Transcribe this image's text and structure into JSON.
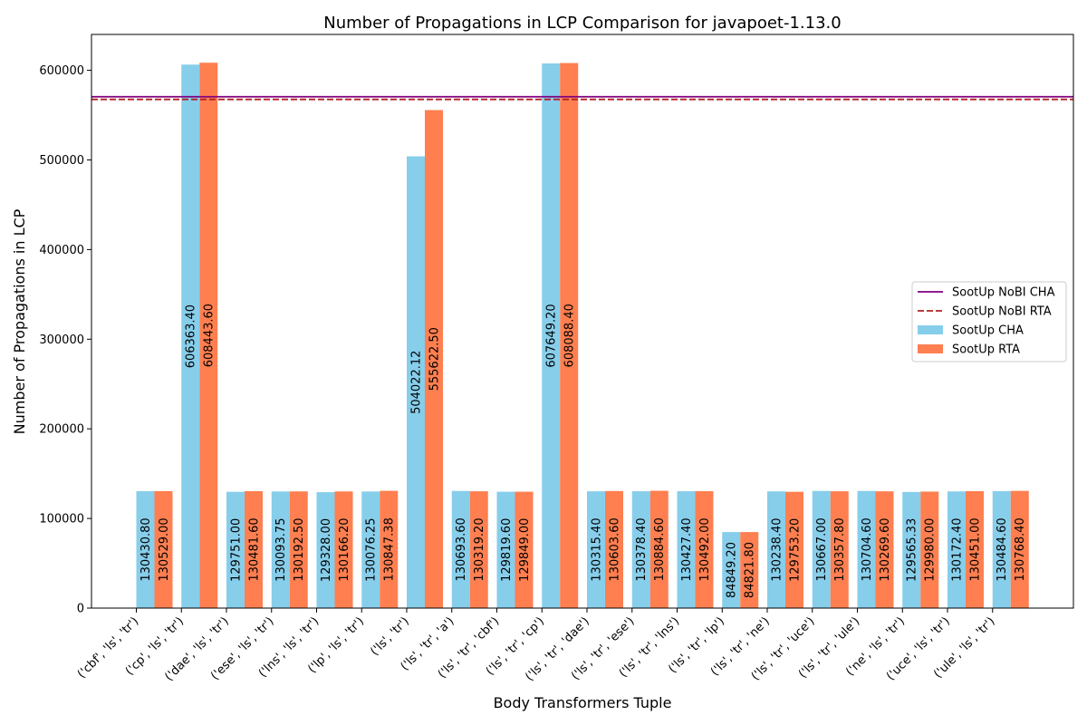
{
  "chart_data": {
    "type": "bar",
    "title": "Number of Propagations in LCP Comparison for javapoet-1.13.0",
    "xlabel": "Body Transformers Tuple",
    "ylabel": "Number of Propagations in LCP",
    "ylim": [
      0,
      640000
    ],
    "yticks": [
      0,
      100000,
      200000,
      300000,
      400000,
      500000,
      600000
    ],
    "grid": false,
    "legend_position": "center-right",
    "categories": [
      "('cbf', 'ls', 'tr')",
      "('cp', 'ls', 'tr')",
      "('dae', 'ls', 'tr')",
      "('ese', 'ls', 'tr')",
      "('lns', 'ls', 'tr')",
      "('lp', 'ls', 'tr')",
      "('ls', 'tr')",
      "('ls', 'tr', 'a')",
      "('ls', 'tr', 'cbf')",
      "('ls', 'tr', 'cp')",
      "('ls', 'tr', 'dae')",
      "('ls', 'tr', 'ese')",
      "('ls', 'tr', 'lns')",
      "('ls', 'tr', 'lp')",
      "('ls', 'tr', 'ne')",
      "('ls', 'tr', 'uce')",
      "('ls', 'tr', 'ule')",
      "('ne', 'ls', 'tr')",
      "('uce', 'ls', 'tr')",
      "('ule', 'ls', 'tr')"
    ],
    "series": [
      {
        "name": "SootUp CHA",
        "color": "#87ceeb",
        "values": [
          130430.8,
          606363.4,
          129751.0,
          130093.75,
          129328.0,
          130076.25,
          504022.12,
          130693.6,
          129819.6,
          607649.2,
          130315.4,
          130378.4,
          130427.4,
          84849.2,
          130238.4,
          130667.0,
          130704.6,
          129565.33,
          130172.4,
          130484.6
        ],
        "labels": [
          "130430.80",
          "606363.40",
          "129751.00",
          "130093.75",
          "129328.00",
          "130076.25",
          "504022.12",
          "130693.60",
          "129819.60",
          "607649.20",
          "130315.40",
          "130378.40",
          "130427.40",
          "84849.20",
          "130238.40",
          "130667.00",
          "130704.60",
          "129565.33",
          "130172.40",
          "130484.60"
        ]
      },
      {
        "name": "SootUp RTA",
        "color": "#ff7f50",
        "values": [
          130529.0,
          608443.6,
          130481.6,
          130192.5,
          130166.2,
          130847.38,
          555622.5,
          130319.2,
          129849.0,
          608088.4,
          130603.6,
          130884.6,
          130492.0,
          84821.8,
          129753.2,
          130357.8,
          130269.6,
          129980.0,
          130451.0,
          130768.4
        ],
        "labels": [
          "130529.00",
          "608443.60",
          "130481.60",
          "130192.50",
          "130166.20",
          "130847.38",
          "555622.50",
          "130319.20",
          "129849.00",
          "608088.40",
          "130603.60",
          "130884.60",
          "130492.00",
          "84821.80",
          "129753.20",
          "130357.80",
          "130269.60",
          "129980.00",
          "130451.00",
          "130768.40"
        ]
      }
    ],
    "reference_lines": [
      {
        "name": "SootUp NoBI CHA",
        "value": 570500,
        "color": "#800080",
        "style": "solid"
      },
      {
        "name": "SootUp NoBI RTA",
        "value": 567500,
        "color": "#b22222",
        "style": "dashed"
      }
    ]
  }
}
